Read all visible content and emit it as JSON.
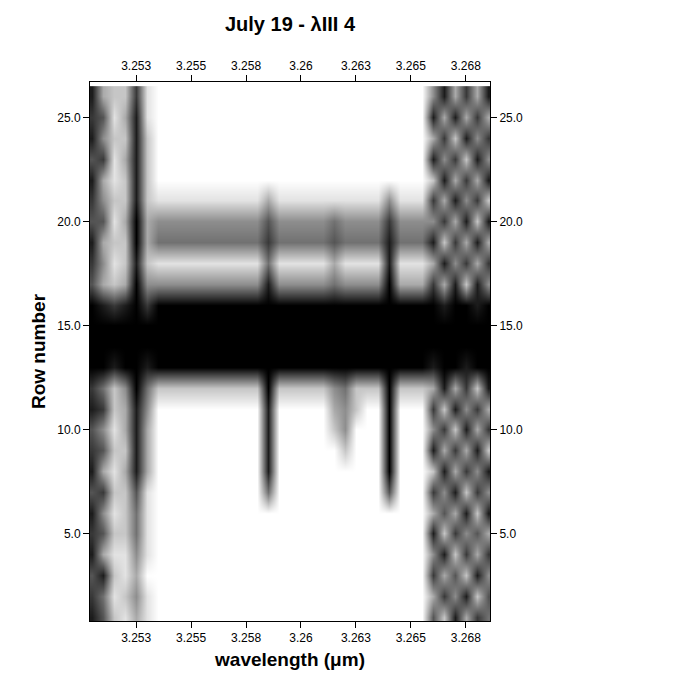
{
  "chart_data": {
    "type": "heatmap",
    "title": "July 19 - λIII 4",
    "x_label": "wavelength (μm)",
    "y_label": "Row number",
    "xlim": [
      3.2509,
      3.2691
    ],
    "ylim": [
      0.8,
      26.7
    ],
    "xticks": [
      {
        "value": 3.253,
        "label": "3.253"
      },
      {
        "value": 3.2555,
        "label": "3.255"
      },
      {
        "value": 3.258,
        "label": "3.258"
      },
      {
        "value": 3.2605,
        "label": "3.26"
      },
      {
        "value": 3.263,
        "label": "3.263"
      },
      {
        "value": 3.2655,
        "label": "3.265"
      },
      {
        "value": 3.268,
        "label": "3.268"
      }
    ],
    "yticks": [
      {
        "value": 5,
        "label": "5.0"
      },
      {
        "value": 10,
        "label": "10.0"
      },
      {
        "value": 15,
        "label": "15.0"
      },
      {
        "value": 20,
        "label": "20.0"
      },
      {
        "value": 25,
        "label": "25.0"
      }
    ],
    "zlim": [
      0,
      9
    ],
    "x": [
      3.251,
      3.2515,
      3.252,
      3.2525,
      3.253,
      3.2535,
      3.254,
      3.2545,
      3.255,
      3.2555,
      3.256,
      3.2565,
      3.257,
      3.2575,
      3.258,
      3.2585,
      3.259,
      3.2595,
      3.26,
      3.2605,
      3.261,
      3.2615,
      3.262,
      3.2625,
      3.263,
      3.2635,
      3.264,
      3.2645,
      3.265,
      3.2655,
      3.266,
      3.2665,
      3.267,
      3.2675,
      3.268,
      3.2685,
      3.269
    ],
    "y": [
      1,
      2,
      3,
      4,
      5,
      6,
      7,
      8,
      9,
      10,
      11,
      12,
      13,
      14,
      15,
      16,
      17,
      18,
      19,
      20,
      21,
      22,
      23,
      24,
      25,
      26
    ],
    "z": [
      [
        8,
        6,
        2,
        1,
        3,
        1,
        0,
        0,
        0,
        0,
        0,
        0,
        0,
        0,
        0,
        0,
        0,
        0,
        0,
        0,
        0,
        0,
        0,
        0,
        0,
        0,
        0,
        0,
        0,
        0,
        0,
        6,
        2,
        8,
        3,
        7,
        5
      ],
      [
        7,
        5,
        1,
        2,
        4,
        1,
        0,
        0,
        0,
        0,
        0,
        0,
        0,
        0,
        0,
        0,
        0,
        0,
        0,
        0,
        0,
        0,
        0,
        0,
        0,
        0,
        0,
        0,
        0,
        0,
        0,
        3,
        7,
        4,
        8,
        2,
        6
      ],
      [
        6,
        8,
        2,
        1,
        3,
        0,
        0,
        0,
        0,
        0,
        0,
        0,
        0,
        0,
        0,
        0,
        0,
        0,
        0,
        0,
        0,
        0,
        0,
        0,
        0,
        0,
        0,
        0,
        0,
        0,
        0,
        7,
        3,
        6,
        2,
        8,
        4
      ],
      [
        8,
        3,
        1,
        1,
        4,
        1,
        0,
        0,
        0,
        0,
        0,
        0,
        0,
        0,
        0,
        0,
        0,
        0,
        0,
        0,
        0,
        0,
        0,
        0,
        0,
        0,
        0,
        0,
        0,
        0,
        0,
        4,
        8,
        2,
        7,
        3,
        7
      ],
      [
        7,
        6,
        2,
        2,
        5,
        1,
        0,
        0,
        0,
        0,
        0,
        0,
        0,
        0,
        0,
        0,
        0,
        0,
        0,
        0,
        0,
        0,
        0,
        0,
        0,
        0,
        0,
        0,
        0,
        0,
        0,
        8,
        2,
        7,
        4,
        6,
        3
      ],
      [
        8,
        4,
        1,
        2,
        5,
        1,
        0,
        0,
        0,
        0,
        0,
        0,
        0,
        0,
        0,
        0,
        0,
        0,
        0,
        0,
        0,
        0,
        0,
        0,
        0,
        0,
        0,
        0,
        0,
        0,
        0,
        3,
        6,
        3,
        8,
        2,
        8
      ],
      [
        6,
        7,
        2,
        2,
        6,
        1,
        0,
        0,
        0,
        0,
        0,
        0,
        0,
        0,
        0,
        0,
        5,
        0,
        0,
        0,
        0,
        0,
        0,
        0,
        0,
        0,
        0,
        6,
        0,
        0,
        0,
        7,
        4,
        8,
        2,
        7,
        4
      ],
      [
        8,
        3,
        1,
        3,
        8,
        3,
        0,
        0,
        0,
        0,
        0,
        0,
        0,
        0,
        0,
        0,
        8,
        0,
        0,
        0,
        0,
        0,
        0,
        0,
        0,
        0,
        0,
        9,
        0,
        0,
        0,
        2,
        8,
        3,
        7,
        4,
        8
      ],
      [
        7,
        6,
        2,
        2,
        8,
        3,
        0,
        0,
        0,
        0,
        0,
        0,
        0,
        0,
        0,
        0,
        8,
        0,
        0,
        0,
        0,
        0,
        0,
        2,
        0,
        0,
        0,
        9,
        0,
        0,
        0,
        8,
        3,
        7,
        3,
        8,
        2
      ],
      [
        6,
        4,
        1,
        3,
        8,
        3,
        0,
        0,
        0,
        0,
        0,
        0,
        0,
        0,
        0,
        0,
        8,
        0,
        0,
        0,
        0,
        0,
        2,
        4,
        0,
        0,
        0,
        9,
        0,
        0,
        0,
        4,
        7,
        2,
        8,
        3,
        7
      ],
      [
        8,
        7,
        2,
        3,
        8,
        4,
        0,
        0,
        0,
        0,
        0,
        0,
        0,
        0,
        0,
        0,
        8,
        0,
        0,
        0,
        0,
        0,
        3,
        4,
        2,
        0,
        0,
        9,
        0,
        0,
        0,
        7,
        2,
        8,
        4,
        7,
        3
      ],
      [
        7,
        5,
        2,
        4,
        9,
        5,
        2,
        2,
        2,
        2,
        2,
        2,
        2,
        2,
        2,
        2,
        9,
        2,
        2,
        2,
        2,
        2,
        4,
        5,
        2,
        2,
        2,
        9,
        2,
        2,
        2,
        3,
        8,
        3,
        7,
        2,
        8
      ],
      [
        9,
        9,
        8,
        9,
        9,
        8,
        9,
        9,
        9,
        9,
        9,
        9,
        9,
        9,
        9,
        9,
        9,
        9,
        9,
        9,
        9,
        9,
        9,
        9,
        9,
        9,
        9,
        9,
        9,
        9,
        9,
        8,
        9,
        9,
        8,
        9,
        9
      ],
      [
        9,
        9,
        9,
        9,
        9,
        9,
        9,
        9,
        9,
        9,
        9,
        9,
        9,
        9,
        9,
        9,
        9,
        9,
        9,
        9,
        9,
        9,
        9,
        9,
        9,
        9,
        9,
        9,
        9,
        9,
        9,
        9,
        9,
        9,
        9,
        9,
        9
      ],
      [
        9,
        9,
        9,
        9,
        9,
        9,
        9,
        9,
        9,
        9,
        9,
        9,
        9,
        9,
        9,
        9,
        9,
        9,
        9,
        9,
        9,
        9,
        9,
        9,
        9,
        9,
        9,
        9,
        9,
        9,
        9,
        9,
        9,
        9,
        9,
        9,
        9
      ],
      [
        9,
        8,
        7,
        8,
        9,
        7,
        9,
        9,
        9,
        9,
        9,
        9,
        9,
        9,
        9,
        9,
        9,
        9,
        9,
        9,
        9,
        9,
        9,
        9,
        9,
        9,
        9,
        9,
        9,
        9,
        9,
        9,
        8,
        9,
        9,
        8,
        9
      ],
      [
        6,
        3,
        2,
        3,
        9,
        4,
        4,
        4,
        4,
        4,
        4,
        4,
        4,
        4,
        4,
        4,
        8,
        4,
        4,
        4,
        4,
        4,
        5,
        4,
        4,
        4,
        4,
        9,
        3,
        3,
        3,
        7,
        3,
        8,
        2,
        8,
        4
      ],
      [
        7,
        4,
        1,
        2,
        8,
        2,
        1,
        1,
        1,
        1,
        1,
        1,
        1,
        1,
        1,
        1,
        5,
        1,
        1,
        1,
        1,
        1,
        3,
        1,
        1,
        1,
        1,
        8,
        1,
        1,
        1,
        3,
        8,
        4,
        7,
        3,
        7
      ],
      [
        8,
        3,
        2,
        2,
        9,
        3,
        5,
        5,
        5,
        5,
        5,
        5,
        5,
        5,
        5,
        5,
        7,
        5,
        5,
        5,
        5,
        5,
        6,
        5,
        5,
        5,
        5,
        8,
        5,
        5,
        5,
        8,
        2,
        7,
        3,
        8,
        3
      ],
      [
        6,
        6,
        1,
        3,
        9,
        3,
        4,
        4,
        4,
        4,
        4,
        4,
        4,
        4,
        4,
        4,
        6,
        4,
        4,
        4,
        4,
        4,
        5,
        4,
        4,
        4,
        4,
        7,
        4,
        4,
        4,
        4,
        7,
        3,
        8,
        2,
        8
      ],
      [
        7,
        4,
        2,
        2,
        8,
        2,
        1,
        1,
        1,
        1,
        1,
        1,
        1,
        1,
        1,
        1,
        3,
        1,
        1,
        1,
        1,
        1,
        1,
        1,
        1,
        1,
        1,
        4,
        1,
        1,
        1,
        7,
        3,
        8,
        4,
        7,
        2
      ],
      [
        8,
        3,
        1,
        2,
        8,
        2,
        0,
        0,
        0,
        0,
        0,
        0,
        0,
        0,
        0,
        0,
        0,
        0,
        0,
        0,
        0,
        0,
        0,
        0,
        0,
        0,
        0,
        0,
        0,
        0,
        0,
        2,
        8,
        3,
        7,
        3,
        8
      ],
      [
        6,
        7,
        1,
        3,
        8,
        2,
        0,
        0,
        0,
        0,
        0,
        0,
        0,
        0,
        0,
        0,
        0,
        0,
        0,
        0,
        0,
        0,
        0,
        0,
        0,
        0,
        0,
        0,
        0,
        0,
        0,
        8,
        4,
        7,
        2,
        8,
        4
      ],
      [
        8,
        4,
        2,
        2,
        8,
        2,
        0,
        0,
        0,
        0,
        0,
        0,
        0,
        0,
        0,
        0,
        0,
        0,
        0,
        0,
        0,
        0,
        0,
        0,
        0,
        0,
        0,
        0,
        0,
        0,
        0,
        3,
        7,
        2,
        8,
        4,
        7
      ],
      [
        7,
        6,
        1,
        3,
        8,
        1,
        0,
        0,
        0,
        0,
        0,
        0,
        0,
        0,
        0,
        0,
        0,
        0,
        0,
        0,
        0,
        0,
        0,
        0,
        0,
        0,
        0,
        0,
        0,
        0,
        0,
        8,
        3,
        8,
        3,
        7,
        3
      ],
      [
        8,
        3,
        2,
        2,
        7,
        1,
        0,
        0,
        0,
        0,
        0,
        0,
        0,
        0,
        0,
        0,
        0,
        0,
        0,
        0,
        0,
        0,
        0,
        0,
        0,
        0,
        0,
        0,
        0,
        0,
        0,
        4,
        8,
        3,
        7,
        3,
        8
      ]
    ]
  }
}
